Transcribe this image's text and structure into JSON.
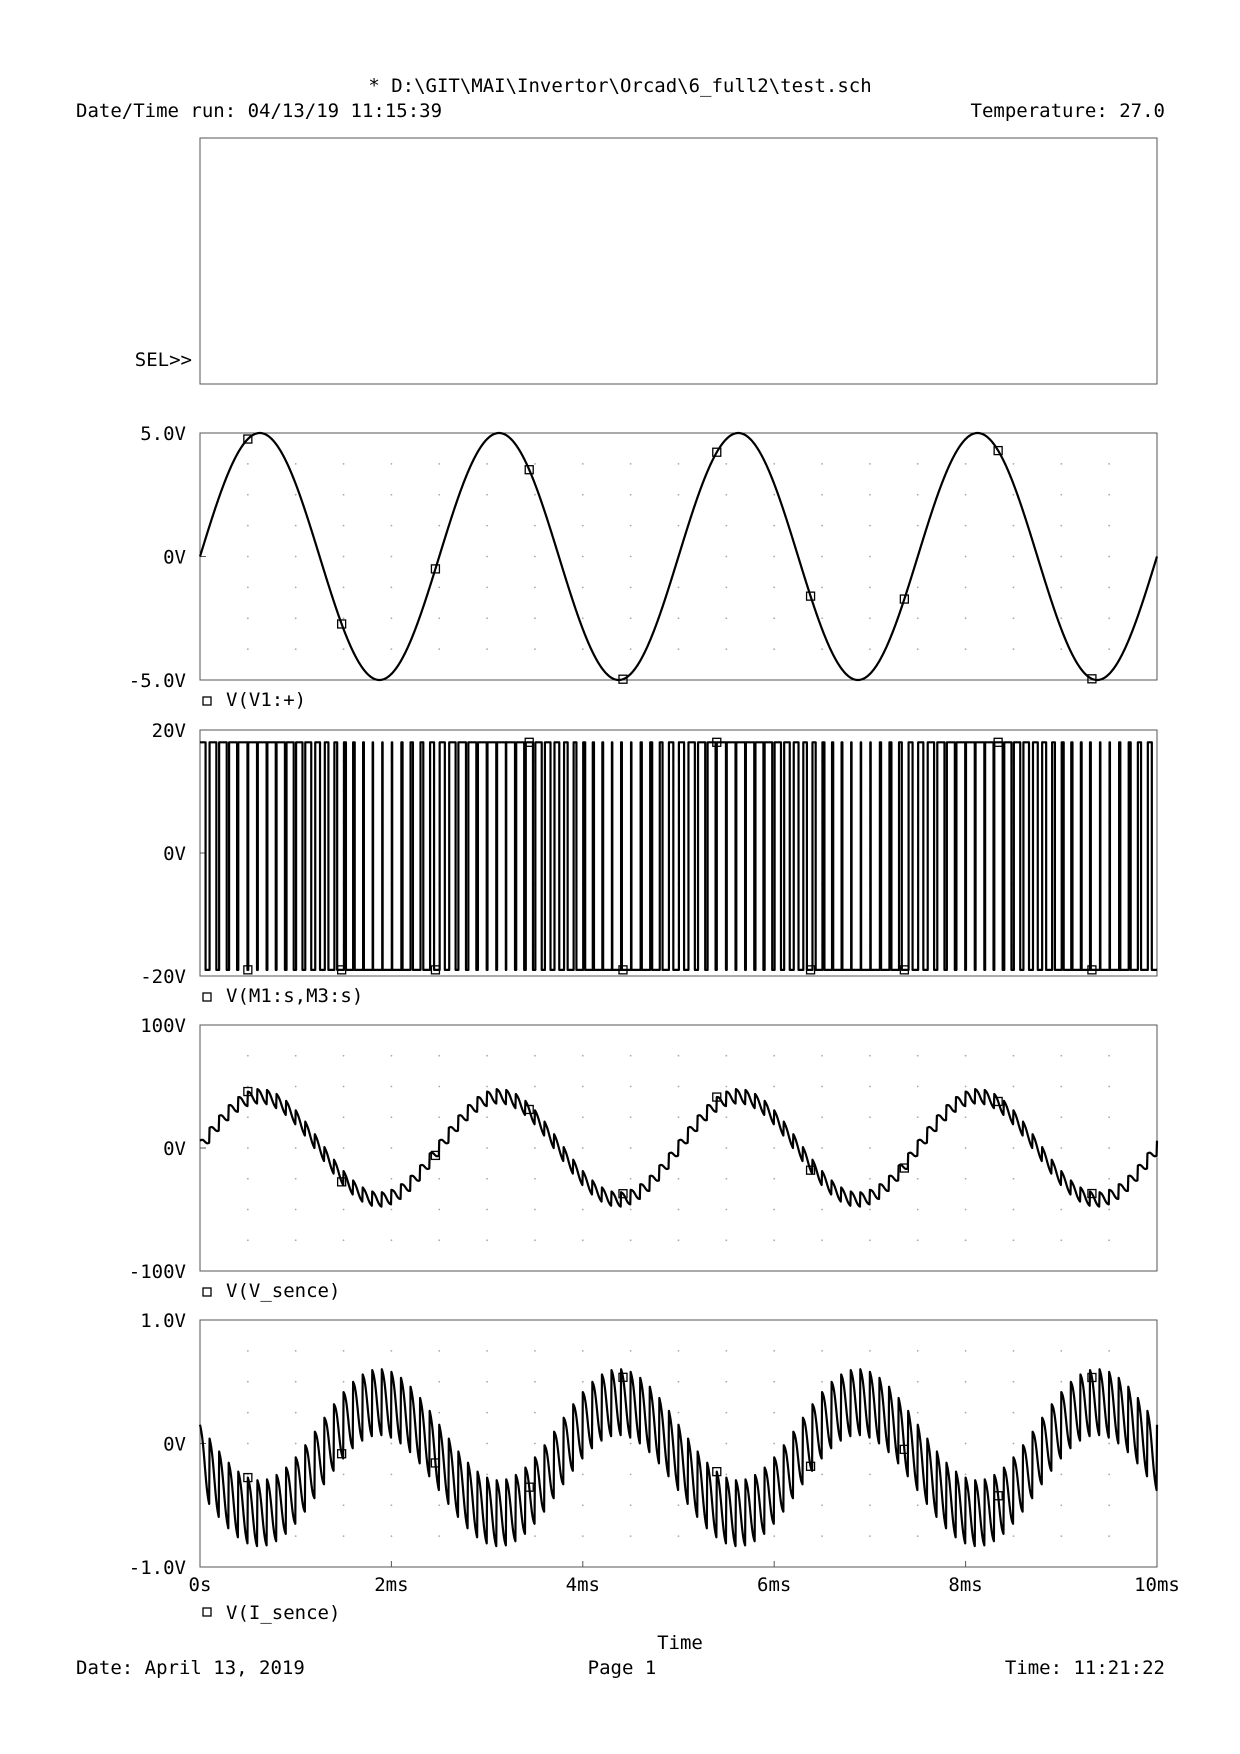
{
  "header": {
    "title": "* D:\\GIT\\MAI\\Invertor\\Orcad\\6_full2\\test.sch",
    "datetime_run": "Date/Time run: 04/13/19 11:15:39",
    "temperature": "Temperature: 27.0"
  },
  "footer": {
    "date": "Date: April 13, 2019",
    "page": "Page 1",
    "time": "Time: 11:21:22"
  },
  "sel_label": "SEL>>",
  "colors": {
    "trace": "#000000",
    "frame": "#555555",
    "grid": "#a8a8a8"
  },
  "chart_data": [
    {
      "type": "line",
      "title": "",
      "empty": true,
      "xlabel": "",
      "ylabel": "",
      "series": []
    },
    {
      "type": "line",
      "xlabel": "",
      "xlim": [
        0,
        10
      ],
      "ylim": [
        -5,
        5
      ],
      "yticks": [
        {
          "value": 5,
          "label": "5.0V"
        },
        {
          "value": 0,
          "label": "0V"
        },
        {
          "value": -5,
          "label": "-5.0V"
        }
      ],
      "legend": "V(V1:+)",
      "series": [
        {
          "name": "V(V1:+)",
          "wave": "sine",
          "amplitude": 5,
          "frequency_khz": 0.4,
          "phase_deg": 0
        }
      ]
    },
    {
      "type": "line",
      "xlabel": "",
      "xlim": [
        0,
        10
      ],
      "ylim": [
        -20,
        20
      ],
      "yticks": [
        {
          "value": 20,
          "label": "20V"
        },
        {
          "value": 0,
          "label": "0V"
        },
        {
          "value": -20,
          "label": "-20V"
        }
      ],
      "legend": "V(M1:s,M3:s)",
      "series": [
        {
          "name": "V(M1:s,M3:s)",
          "wave": "pwm_bipolar",
          "high": 18,
          "low": -19,
          "switching_frequency_khz": 10,
          "modulation_frequency_khz": 0.4
        }
      ]
    },
    {
      "type": "line",
      "xlabel": "",
      "xlim": [
        0,
        10
      ],
      "ylim": [
        -100,
        100
      ],
      "yticks": [
        {
          "value": 100,
          "label": "100V"
        },
        {
          "value": 0,
          "label": "0V"
        },
        {
          "value": -100,
          "label": "-100V"
        }
      ],
      "legend": "V(V_sence)",
      "series": [
        {
          "name": "V(V_sence)",
          "wave": "sine_with_ripple",
          "amplitude": 42,
          "frequency_khz": 0.4,
          "ripple_amplitude": 7,
          "ripple_frequency_khz": 10
        }
      ]
    },
    {
      "type": "line",
      "xlabel": "Time",
      "xlim": [
        0,
        10
      ],
      "ylim": [
        -1,
        1
      ],
      "yticks": [
        {
          "value": 1,
          "label": "1.0V"
        },
        {
          "value": 0,
          "label": "0V"
        },
        {
          "value": -1,
          "label": "-1.0V"
        }
      ],
      "xticks": [
        {
          "value": 0,
          "label": "0s"
        },
        {
          "value": 2,
          "label": "2ms"
        },
        {
          "value": 4,
          "label": "4ms"
        },
        {
          "value": 6,
          "label": "6ms"
        },
        {
          "value": 8,
          "label": "8ms"
        },
        {
          "value": 10,
          "label": "10ms"
        }
      ],
      "legend": "V(I_sence)",
      "series": [
        {
          "name": "V(I_sence)",
          "wave": "sine_with_ripple",
          "amplitude": 0.45,
          "offset": -0.12,
          "frequency_khz": 0.4,
          "phase_deg": 180,
          "ripple_amplitude": 0.32,
          "ripple_frequency_khz": 10
        }
      ]
    }
  ]
}
